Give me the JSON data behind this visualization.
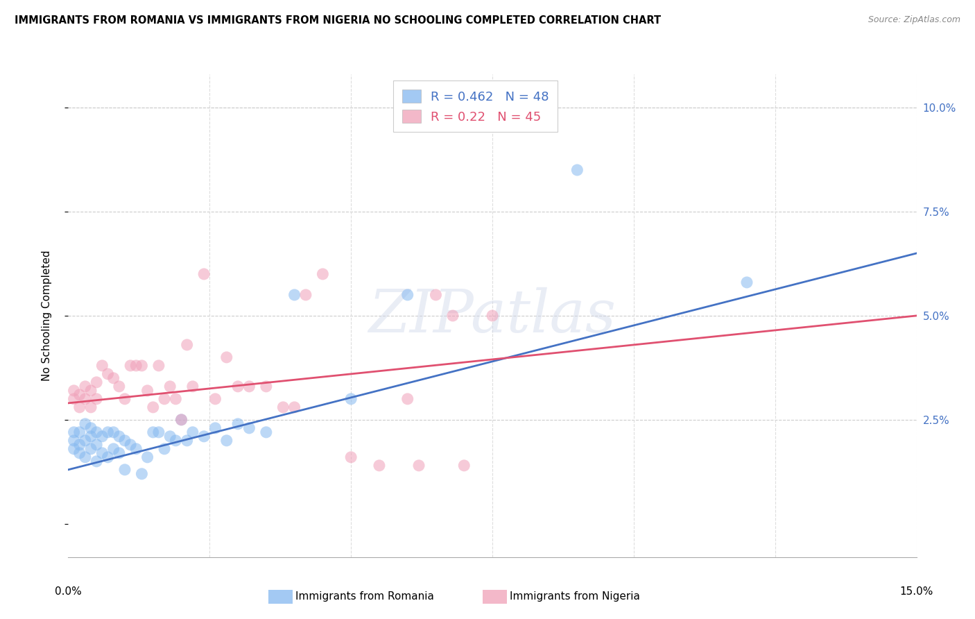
{
  "title": "IMMIGRANTS FROM ROMANIA VS IMMIGRANTS FROM NIGERIA NO SCHOOLING COMPLETED CORRELATION CHART",
  "source": "Source: ZipAtlas.com",
  "ylabel": "No Schooling Completed",
  "xlim": [
    0.0,
    0.15
  ],
  "ylim": [
    -0.008,
    0.108
  ],
  "romania_R": 0.462,
  "romania_N": 48,
  "nigeria_R": 0.22,
  "nigeria_N": 45,
  "romania_color": "#85b8f0",
  "nigeria_color": "#f0a0b8",
  "romania_line_color": "#4472c4",
  "nigeria_line_color": "#e05070",
  "watermark_text": "ZIPatlas",
  "ytick_vals": [
    0.0,
    0.025,
    0.05,
    0.075,
    0.1
  ],
  "ytick_labels": [
    "",
    "2.5%",
    "5.0%",
    "7.5%",
    "10.0%"
  ],
  "romania_x": [
    0.001,
    0.001,
    0.001,
    0.002,
    0.002,
    0.002,
    0.003,
    0.003,
    0.003,
    0.004,
    0.004,
    0.004,
    0.005,
    0.005,
    0.005,
    0.006,
    0.006,
    0.007,
    0.007,
    0.008,
    0.008,
    0.009,
    0.009,
    0.01,
    0.01,
    0.011,
    0.012,
    0.013,
    0.014,
    0.015,
    0.016,
    0.017,
    0.018,
    0.019,
    0.02,
    0.021,
    0.022,
    0.024,
    0.026,
    0.028,
    0.03,
    0.032,
    0.035,
    0.04,
    0.05,
    0.06,
    0.09,
    0.12
  ],
  "romania_y": [
    0.018,
    0.02,
    0.022,
    0.017,
    0.019,
    0.022,
    0.016,
    0.02,
    0.024,
    0.018,
    0.021,
    0.023,
    0.015,
    0.019,
    0.022,
    0.017,
    0.021,
    0.016,
    0.022,
    0.018,
    0.022,
    0.017,
    0.021,
    0.013,
    0.02,
    0.019,
    0.018,
    0.012,
    0.016,
    0.022,
    0.022,
    0.018,
    0.021,
    0.02,
    0.025,
    0.02,
    0.022,
    0.021,
    0.023,
    0.02,
    0.024,
    0.023,
    0.022,
    0.055,
    0.03,
    0.055,
    0.085,
    0.058
  ],
  "nigeria_x": [
    0.001,
    0.001,
    0.002,
    0.002,
    0.003,
    0.003,
    0.004,
    0.004,
    0.005,
    0.005,
    0.006,
    0.007,
    0.008,
    0.009,
    0.01,
    0.011,
    0.012,
    0.013,
    0.014,
    0.015,
    0.016,
    0.017,
    0.018,
    0.019,
    0.02,
    0.021,
    0.022,
    0.024,
    0.026,
    0.028,
    0.03,
    0.032,
    0.035,
    0.038,
    0.04,
    0.042,
    0.045,
    0.05,
    0.055,
    0.06,
    0.062,
    0.065,
    0.068,
    0.07,
    0.075
  ],
  "nigeria_y": [
    0.03,
    0.032,
    0.028,
    0.031,
    0.03,
    0.033,
    0.028,
    0.032,
    0.03,
    0.034,
    0.038,
    0.036,
    0.035,
    0.033,
    0.03,
    0.038,
    0.038,
    0.038,
    0.032,
    0.028,
    0.038,
    0.03,
    0.033,
    0.03,
    0.025,
    0.043,
    0.033,
    0.06,
    0.03,
    0.04,
    0.033,
    0.033,
    0.033,
    0.028,
    0.028,
    0.055,
    0.06,
    0.016,
    0.014,
    0.03,
    0.014,
    0.055,
    0.05,
    0.014,
    0.05
  ]
}
